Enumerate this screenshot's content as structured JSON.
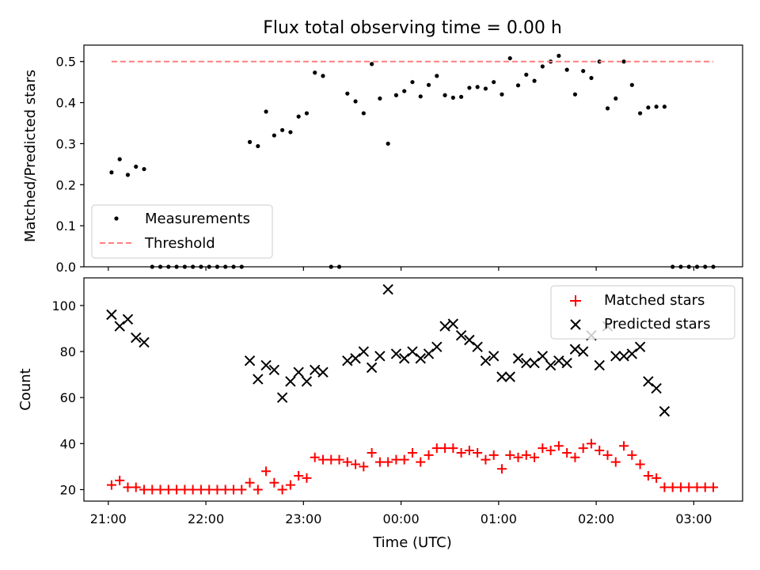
{
  "figure": {
    "title": "Flux total observing time = 0.00 h",
    "xlabel": "Time (UTC)"
  },
  "chart_data": [
    {
      "type": "scatter",
      "ylabel": "Matched/Predicted stars",
      "xlim": [
        "20:45",
        "03:30"
      ],
      "ylim": [
        0,
        0.54
      ],
      "yticks": [
        0.0,
        0.1,
        0.2,
        0.3,
        0.4,
        0.5
      ],
      "ytick_labels": [
        "0.0",
        "0.1",
        "0.2",
        "0.3",
        "0.4",
        "0.5"
      ],
      "legend_position": "lower-left",
      "series": [
        {
          "name": "Measurements",
          "marker": "dot",
          "color": "#000000",
          "points": [
            [
              "21:02",
              0.23
            ],
            [
              "21:07",
              0.262
            ],
            [
              "21:12",
              0.224
            ],
            [
              "21:17",
              0.244
            ],
            [
              "21:22",
              0.238
            ],
            [
              "21:27",
              0.0
            ],
            [
              "21:32",
              0.0
            ],
            [
              "21:37",
              0.0
            ],
            [
              "21:42",
              0.0
            ],
            [
              "21:47",
              0.0
            ],
            [
              "21:52",
              0.0
            ],
            [
              "21:57",
              0.0
            ],
            [
              "22:02",
              0.0
            ],
            [
              "22:07",
              0.0
            ],
            [
              "22:12",
              0.0
            ],
            [
              "22:17",
              0.0
            ],
            [
              "22:22",
              0.0
            ],
            [
              "22:27",
              0.304
            ],
            [
              "22:32",
              0.294
            ],
            [
              "22:37",
              0.378
            ],
            [
              "22:42",
              0.32
            ],
            [
              "22:47",
              0.333
            ],
            [
              "22:52",
              0.328
            ],
            [
              "22:57",
              0.366
            ],
            [
              "23:02",
              0.374
            ],
            [
              "23:07",
              0.473
            ],
            [
              "23:12",
              0.465
            ],
            [
              "23:17",
              0.0
            ],
            [
              "23:22",
              0.0
            ],
            [
              "23:27",
              0.422
            ],
            [
              "23:32",
              0.403
            ],
            [
              "23:37",
              0.374
            ],
            [
              "23:42",
              0.494
            ],
            [
              "23:47",
              0.41
            ],
            [
              "23:52",
              0.3
            ],
            [
              "23:57",
              0.418
            ],
            [
              "00:02",
              0.428
            ],
            [
              "00:07",
              0.45
            ],
            [
              "00:12",
              0.415
            ],
            [
              "00:17",
              0.443
            ],
            [
              "00:22",
              0.465
            ],
            [
              "00:27",
              0.418
            ],
            [
              "00:32",
              0.412
            ],
            [
              "00:37",
              0.414
            ],
            [
              "00:42",
              0.436
            ],
            [
              "00:47",
              0.438
            ],
            [
              "00:52",
              0.434
            ],
            [
              "00:57",
              0.45
            ],
            [
              "01:02",
              0.42
            ],
            [
              "01:07",
              0.508
            ],
            [
              "01:12",
              0.442
            ],
            [
              "01:17",
              0.468
            ],
            [
              "01:22",
              0.453
            ],
            [
              "01:27",
              0.488
            ],
            [
              "01:32",
              0.5
            ],
            [
              "01:37",
              0.514
            ],
            [
              "01:42",
              0.48
            ],
            [
              "01:47",
              0.42
            ],
            [
              "01:52",
              0.477
            ],
            [
              "01:57",
              0.46
            ],
            [
              "02:02",
              0.5
            ],
            [
              "02:07",
              0.386
            ],
            [
              "02:12",
              0.41
            ],
            [
              "02:17",
              0.5
            ],
            [
              "02:22",
              0.443
            ],
            [
              "02:27",
              0.374
            ],
            [
              "02:32",
              0.388
            ],
            [
              "02:37",
              0.39
            ],
            [
              "02:42",
              0.39
            ],
            [
              "02:47",
              0.0
            ],
            [
              "02:52",
              0.0
            ],
            [
              "02:57",
              0.0
            ],
            [
              "03:02",
              0.0
            ],
            [
              "03:07",
              0.0
            ],
            [
              "03:12",
              0.0
            ]
          ]
        },
        {
          "name": "Threshold",
          "line_style": "dashed",
          "color": "#ff7f7f",
          "points": [
            [
              "21:02",
              0.5
            ],
            [
              "03:12",
              0.5
            ]
          ]
        }
      ]
    },
    {
      "type": "scatter",
      "ylabel": "Count",
      "xlim": [
        "20:45",
        "03:30"
      ],
      "ylim": [
        15,
        112
      ],
      "yticks": [
        20,
        40,
        60,
        80,
        100
      ],
      "ytick_labels": [
        "20",
        "40",
        "60",
        "80",
        "100"
      ],
      "xticks": [
        "21:00",
        "22:00",
        "23:00",
        "00:00",
        "01:00",
        "02:00",
        "03:00"
      ],
      "legend_position": "upper-right",
      "series": [
        {
          "name": "Matched stars",
          "marker": "plus",
          "color": "#ff0000",
          "points": [
            [
              "21:02",
              22
            ],
            [
              "21:07",
              24
            ],
            [
              "21:12",
              21
            ],
            [
              "21:17",
              21
            ],
            [
              "21:22",
              20
            ],
            [
              "21:27",
              20
            ],
            [
              "21:32",
              20
            ],
            [
              "21:37",
              20
            ],
            [
              "21:42",
              20
            ],
            [
              "21:47",
              20
            ],
            [
              "21:52",
              20
            ],
            [
              "21:57",
              20
            ],
            [
              "22:02",
              20
            ],
            [
              "22:07",
              20
            ],
            [
              "22:12",
              20
            ],
            [
              "22:17",
              20
            ],
            [
              "22:22",
              20
            ],
            [
              "22:27",
              23
            ],
            [
              "22:32",
              20
            ],
            [
              "22:37",
              28
            ],
            [
              "22:42",
              23
            ],
            [
              "22:47",
              20
            ],
            [
              "22:52",
              22
            ],
            [
              "22:57",
              26
            ],
            [
              "23:02",
              25
            ],
            [
              "23:07",
              34
            ],
            [
              "23:12",
              33
            ],
            [
              "23:17",
              33
            ],
            [
              "23:22",
              33
            ],
            [
              "23:27",
              32
            ],
            [
              "23:32",
              31
            ],
            [
              "23:37",
              30
            ],
            [
              "23:42",
              36
            ],
            [
              "23:47",
              32
            ],
            [
              "23:52",
              32
            ],
            [
              "23:57",
              33
            ],
            [
              "00:02",
              33
            ],
            [
              "00:07",
              36
            ],
            [
              "00:12",
              32
            ],
            [
              "00:17",
              35
            ],
            [
              "00:22",
              38
            ],
            [
              "00:27",
              38
            ],
            [
              "00:32",
              38
            ],
            [
              "00:37",
              36
            ],
            [
              "00:42",
              37
            ],
            [
              "00:47",
              36
            ],
            [
              "00:52",
              33
            ],
            [
              "00:57",
              35
            ],
            [
              "01:02",
              29
            ],
            [
              "01:07",
              35
            ],
            [
              "01:12",
              34
            ],
            [
              "01:17",
              35
            ],
            [
              "01:22",
              34
            ],
            [
              "01:27",
              38
            ],
            [
              "01:32",
              37
            ],
            [
              "01:37",
              39
            ],
            [
              "01:42",
              36
            ],
            [
              "01:47",
              34
            ],
            [
              "01:52",
              38
            ],
            [
              "01:57",
              40
            ],
            [
              "02:02",
              37
            ],
            [
              "02:07",
              35
            ],
            [
              "02:12",
              32
            ],
            [
              "02:17",
              39
            ],
            [
              "02:22",
              35
            ],
            [
              "02:27",
              31
            ],
            [
              "02:32",
              26
            ],
            [
              "02:37",
              25
            ],
            [
              "02:42",
              21
            ],
            [
              "02:47",
              21
            ],
            [
              "02:52",
              21
            ],
            [
              "02:57",
              21
            ],
            [
              "03:02",
              21
            ],
            [
              "03:07",
              21
            ],
            [
              "03:12",
              21
            ]
          ]
        },
        {
          "name": "Predicted stars",
          "marker": "x",
          "color": "#000000",
          "points": [
            [
              "21:02",
              96
            ],
            [
              "21:07",
              91
            ],
            [
              "21:12",
              94
            ],
            [
              "21:17",
              86
            ],
            [
              "21:22",
              84
            ],
            [
              "22:27",
              76
            ],
            [
              "22:32",
              68
            ],
            [
              "22:37",
              74
            ],
            [
              "22:42",
              72
            ],
            [
              "22:47",
              60
            ],
            [
              "22:52",
              67
            ],
            [
              "22:57",
              71
            ],
            [
              "23:02",
              67
            ],
            [
              "23:07",
              72
            ],
            [
              "23:12",
              71
            ],
            [
              "23:27",
              76
            ],
            [
              "23:32",
              77
            ],
            [
              "23:37",
              80
            ],
            [
              "23:42",
              73
            ],
            [
              "23:47",
              78
            ],
            [
              "23:52",
              107
            ],
            [
              "23:57",
              79
            ],
            [
              "00:02",
              77
            ],
            [
              "00:07",
              80
            ],
            [
              "00:12",
              77
            ],
            [
              "00:17",
              79
            ],
            [
              "00:22",
              82
            ],
            [
              "00:27",
              91
            ],
            [
              "00:32",
              92
            ],
            [
              "00:37",
              87
            ],
            [
              "00:42",
              85
            ],
            [
              "00:47",
              82
            ],
            [
              "00:52",
              76
            ],
            [
              "00:57",
              78
            ],
            [
              "01:02",
              69
            ],
            [
              "01:07",
              69
            ],
            [
              "01:12",
              77
            ],
            [
              "01:17",
              75
            ],
            [
              "01:22",
              75
            ],
            [
              "01:27",
              78
            ],
            [
              "01:32",
              74
            ],
            [
              "01:37",
              76
            ],
            [
              "01:42",
              75
            ],
            [
              "01:47",
              81
            ],
            [
              "01:52",
              80
            ],
            [
              "01:57",
              87
            ],
            [
              "02:02",
              74
            ],
            [
              "02:07",
              91
            ],
            [
              "02:12",
              78
            ],
            [
              "02:17",
              78
            ],
            [
              "02:22",
              79
            ],
            [
              "02:27",
              82
            ],
            [
              "02:32",
              67
            ],
            [
              "02:37",
              64
            ],
            [
              "02:42",
              54
            ]
          ]
        }
      ]
    }
  ]
}
